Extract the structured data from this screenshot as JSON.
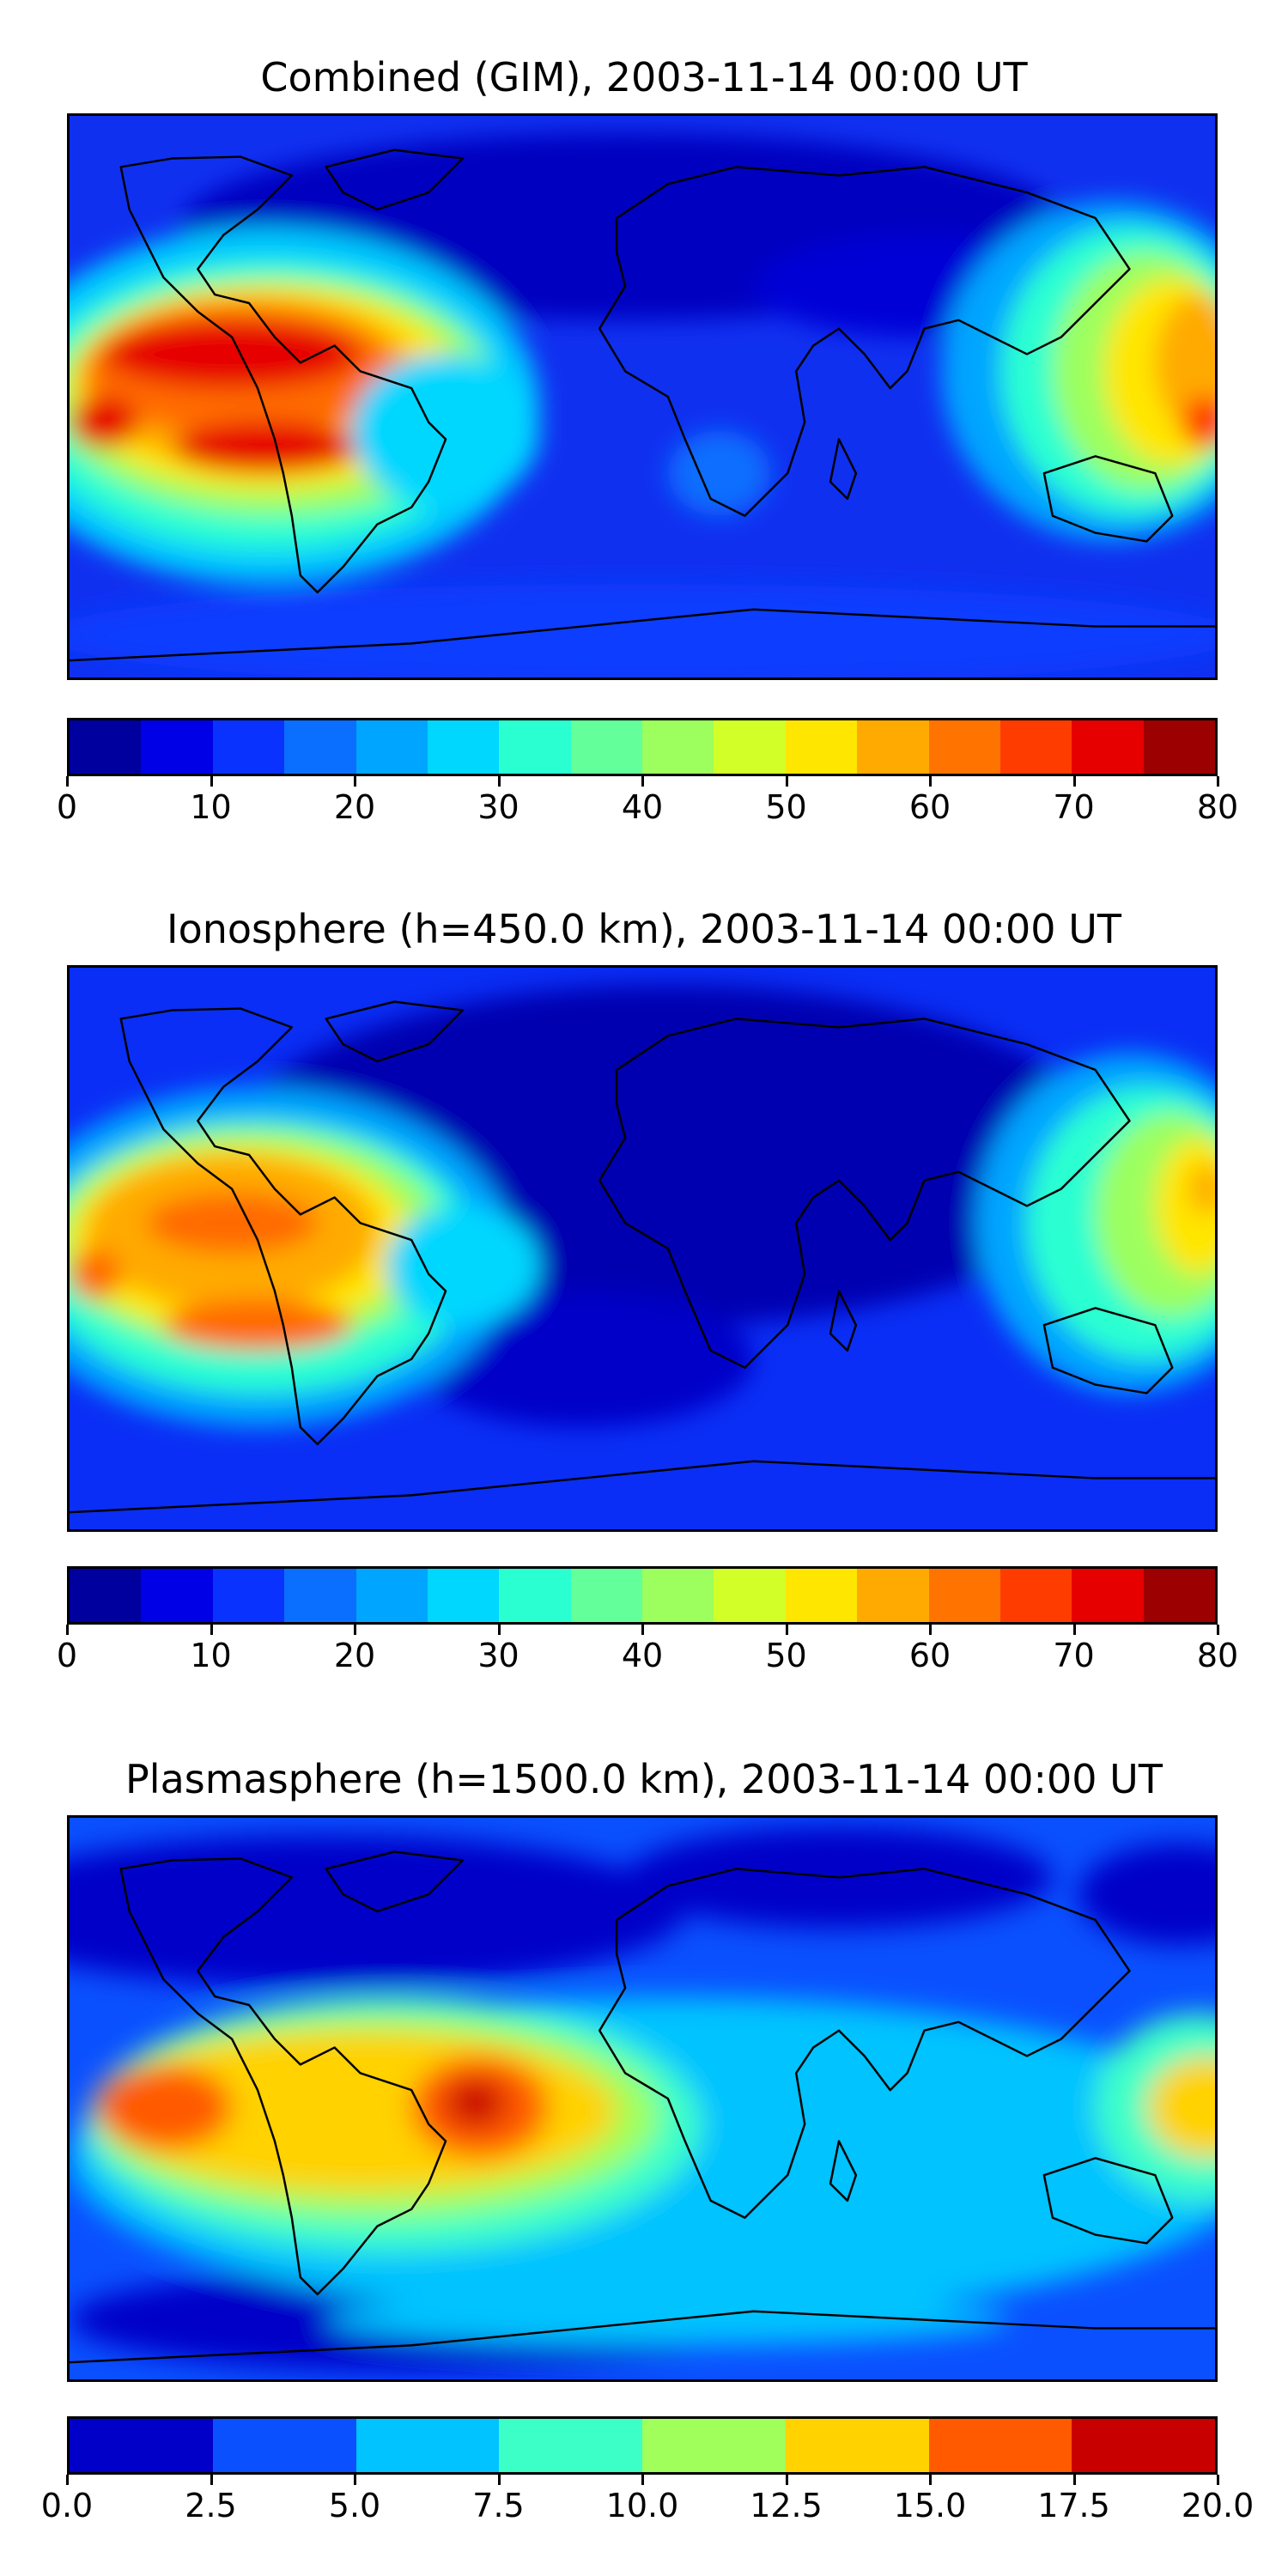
{
  "panels": [
    {
      "title": "Combined (GIM), 2003-11-14 00:00 UT",
      "colorbar": {
        "ticks": [
          "0",
          "10",
          "20",
          "30",
          "40",
          "50",
          "60",
          "70",
          "80"
        ],
        "colors": [
          "#00009f",
          "#0000e6",
          "#0a32ff",
          "#0a6eff",
          "#00a5ff",
          "#00d7ff",
          "#2affd2",
          "#62ff9a",
          "#9cff5e",
          "#d2ff28",
          "#ffe600",
          "#ffaa00",
          "#ff7300",
          "#ff3c00",
          "#e60000",
          "#9c0000"
        ]
      }
    },
    {
      "title": "Ionosphere  (h=450.0 km), 2003-11-14 00:00 UT",
      "colorbar": {
        "ticks": [
          "0",
          "10",
          "20",
          "30",
          "40",
          "50",
          "60",
          "70",
          "80"
        ],
        "colors": [
          "#00009f",
          "#0000e6",
          "#0a32ff",
          "#0a6eff",
          "#00a5ff",
          "#00d7ff",
          "#2affd2",
          "#62ff9a",
          "#9cff5e",
          "#d2ff28",
          "#ffe600",
          "#ffaa00",
          "#ff7300",
          "#ff3c00",
          "#e60000",
          "#9c0000"
        ]
      }
    },
    {
      "title": "Plasmasphere (h=1500.0 km), 2003-11-14 00:00 UT",
      "colorbar": {
        "ticks": [
          "0.0",
          "2.5",
          "5.0",
          "7.5",
          "10.0",
          "12.5",
          "15.0",
          "17.5",
          "20.0"
        ],
        "colors": [
          "#0000c8",
          "#0a50ff",
          "#00c3ff",
          "#3cffc8",
          "#a0ff5a",
          "#ffd200",
          "#ff5a00",
          "#c80000"
        ]
      }
    }
  ]
}
